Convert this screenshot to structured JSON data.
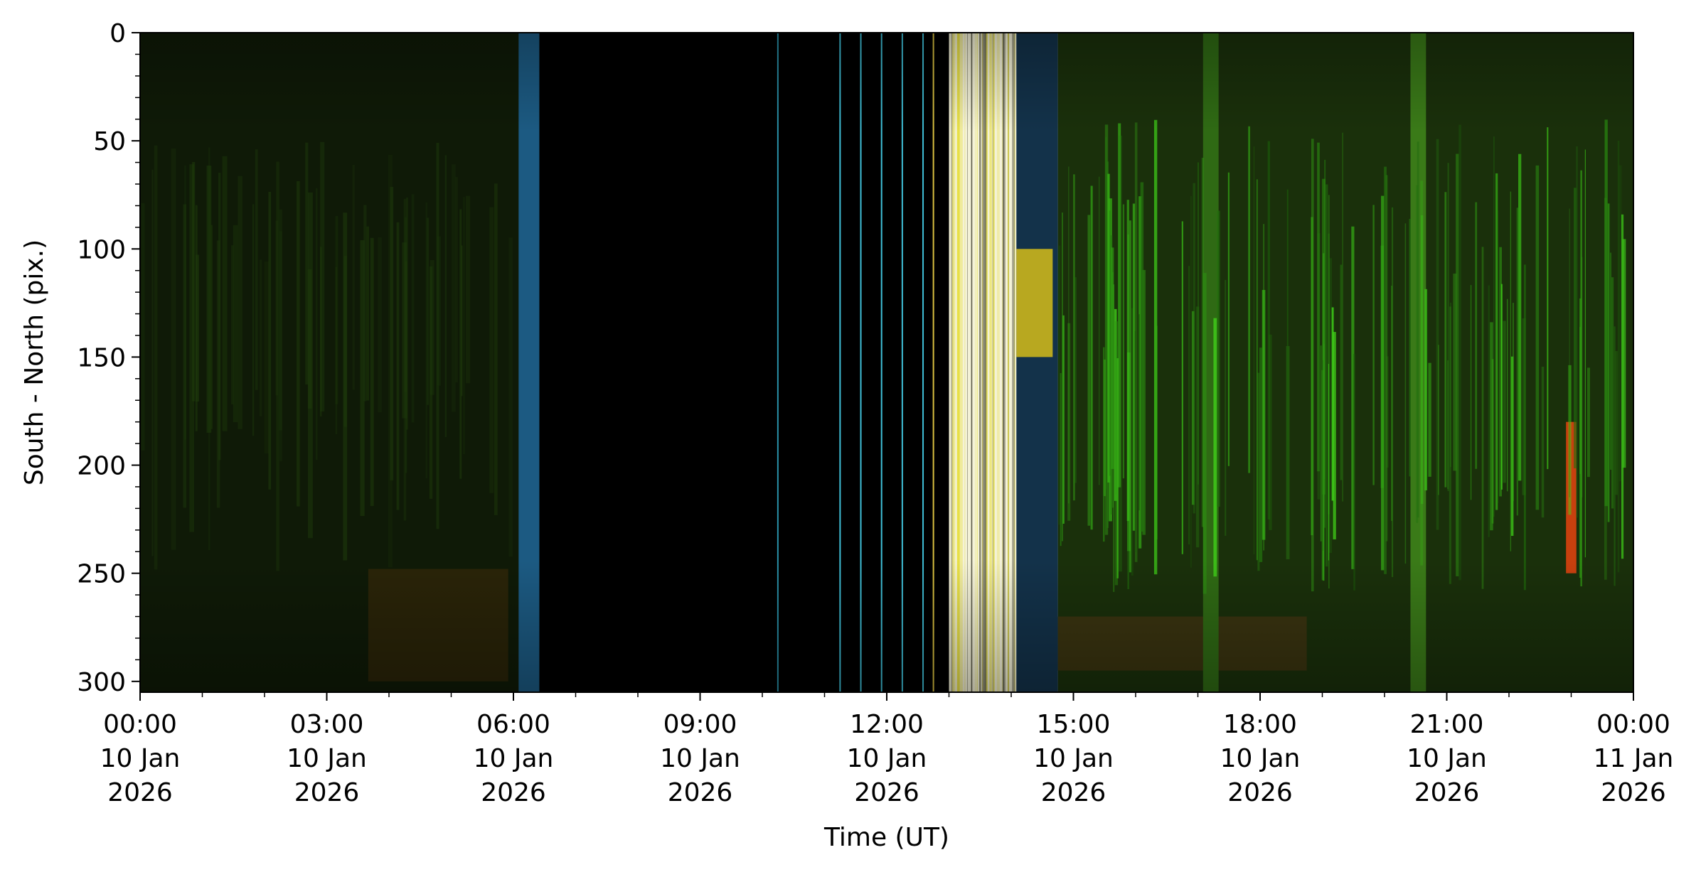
{
  "chart_data": {
    "type": "heatmap",
    "title": "",
    "xlabel": "Time (UT)",
    "ylabel": "South - North (pix.)",
    "xlim": [
      "2026-01-10T00:00",
      "2026-01-11T00:00"
    ],
    "ylim": [
      305,
      0
    ],
    "y_inverted": true,
    "grid": false,
    "legend": "none",
    "y_ticks": [
      0,
      50,
      100,
      150,
      200,
      250,
      300
    ],
    "x_ticks": [
      {
        "time": "2026-01-10T00:00",
        "label": [
          "00:00",
          "10 Jan",
          "2026"
        ]
      },
      {
        "time": "2026-01-10T03:00",
        "label": [
          "03:00",
          "10 Jan",
          "2026"
        ]
      },
      {
        "time": "2026-01-10T06:00",
        "label": [
          "06:00",
          "10 Jan",
          "2026"
        ]
      },
      {
        "time": "2026-01-10T09:00",
        "label": [
          "09:00",
          "10 Jan",
          "2026"
        ]
      },
      {
        "time": "2026-01-10T12:00",
        "label": [
          "12:00",
          "10 Jan",
          "2026"
        ]
      },
      {
        "time": "2026-01-10T15:00",
        "label": [
          "15:00",
          "10 Jan",
          "2026"
        ]
      },
      {
        "time": "2026-01-10T18:00",
        "label": [
          "18:00",
          "10 Jan",
          "2026"
        ]
      },
      {
        "time": "2026-01-10T21:00",
        "label": [
          "21:00",
          "10 Jan",
          "2026"
        ]
      },
      {
        "time": "2026-01-11T00:00",
        "label": [
          "00:00",
          "11 Jan",
          "2026"
        ]
      }
    ],
    "colors": {
      "no_data": "#000000",
      "quiet_green": "#0e1a06",
      "active_green": "#3a7a12",
      "bright_green": "#6fe020",
      "blue_edge": "#2a8ac8",
      "yellow": "#e8e040",
      "saturated": "#ffffff",
      "red": "#d84010"
    },
    "regions": [
      {
        "name": "quiet-early",
        "t0": "2026-01-10T00:00",
        "t1": "2026-01-10T06:25",
        "y0": 0,
        "y1": 305,
        "color": "#0f1a07"
      },
      {
        "name": "quiet-early-band",
        "t0": "2026-01-10T03:40",
        "t1": "2026-01-10T05:55",
        "y0": 248,
        "y1": 300,
        "color": "#2a2408"
      },
      {
        "name": "blue-edge-1",
        "t0": "2026-01-10T06:05",
        "t1": "2026-01-10T06:25",
        "y0": 0,
        "y1": 305,
        "color": "#1c5a82"
      },
      {
        "name": "no-data-gap",
        "t0": "2026-01-10T06:25",
        "t1": "2026-01-10T13:00",
        "y0": 0,
        "y1": 305,
        "color": "#000000"
      },
      {
        "name": "saturated-bright",
        "t0": "2026-01-10T13:00",
        "t1": "2026-01-10T14:05",
        "y0": 0,
        "y1": 305,
        "color": "#f4f2d8"
      },
      {
        "name": "blue-edge-2",
        "t0": "2026-01-10T14:05",
        "t1": "2026-01-10T14:45",
        "y0": 0,
        "y1": 305,
        "color": "#13324a"
      },
      {
        "name": "yellow-patch",
        "t0": "2026-01-10T14:05",
        "t1": "2026-01-10T14:40",
        "y0": 100,
        "y1": 150,
        "color": "#b8a820"
      },
      {
        "name": "active-late",
        "t0": "2026-01-10T14:45",
        "t1": "2026-01-11T00:00",
        "y0": 0,
        "y1": 305,
        "color": "#1a300b"
      },
      {
        "name": "late-band",
        "t0": "2026-01-10T14:45",
        "t1": "2026-01-10T18:45",
        "y0": 270,
        "y1": 295,
        "color": "#3a3410"
      },
      {
        "name": "green-column-1",
        "t0": "2026-01-10T17:05",
        "t1": "2026-01-10T17:20",
        "y0": 0,
        "y1": 305,
        "color": "#2f6a14"
      },
      {
        "name": "green-column-2",
        "t0": "2026-01-10T20:25",
        "t1": "2026-01-10T20:40",
        "y0": 0,
        "y1": 305,
        "color": "#3a7a18"
      },
      {
        "name": "red-streak",
        "t0": "2026-01-10T22:55",
        "t1": "2026-01-10T23:05",
        "y0": 180,
        "y1": 250,
        "color": "#c8400e"
      }
    ],
    "vertical_lines": [
      {
        "t": "2026-01-10T10:15",
        "color": "#2a90a8"
      },
      {
        "t": "2026-01-10T11:15",
        "color": "#40c0d8"
      },
      {
        "t": "2026-01-10T11:35",
        "color": "#40c0d8"
      },
      {
        "t": "2026-01-10T11:55",
        "color": "#40c0d8"
      },
      {
        "t": "2026-01-10T12:15",
        "color": "#40c0d8"
      },
      {
        "t": "2026-01-10T12:35",
        "color": "#40c0d8"
      },
      {
        "t": "2026-01-10T12:45",
        "color": "#d8c040"
      }
    ]
  }
}
